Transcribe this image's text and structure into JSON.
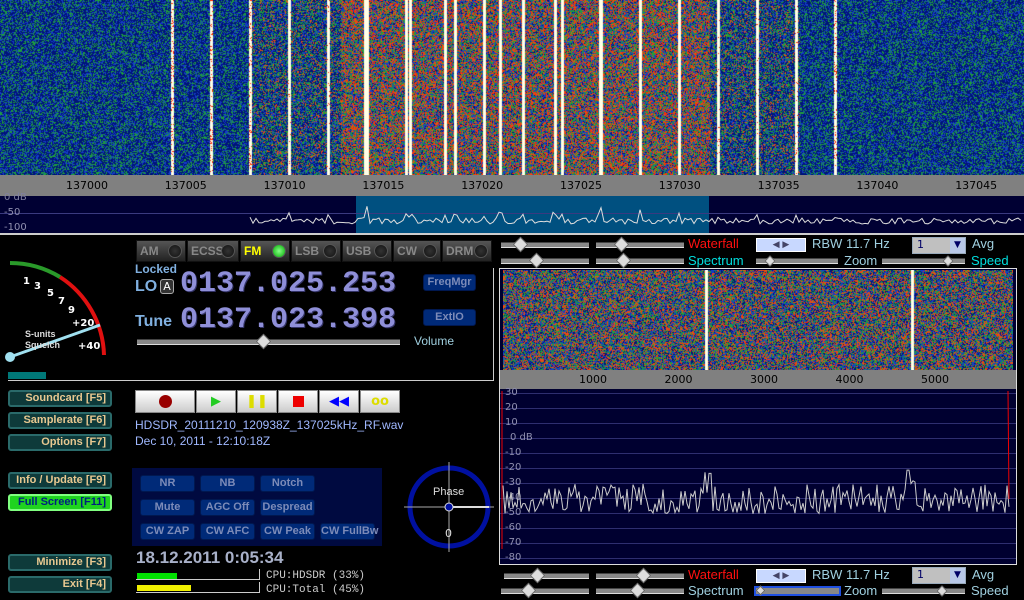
{
  "top_scale": {
    "ticks": [
      "137000",
      "137005",
      "137010",
      "137015",
      "137020",
      "137025",
      "137030",
      "137035",
      "137040",
      "137045"
    ]
  },
  "top_spectrum": {
    "db_labels": [
      "0 dB",
      "-50",
      "-100"
    ]
  },
  "modes": [
    {
      "label": "AM",
      "active": false
    },
    {
      "label": "ECSS",
      "active": false
    },
    {
      "label": "FM",
      "active": true
    },
    {
      "label": "LSB",
      "active": false
    },
    {
      "label": "USB",
      "active": false
    },
    {
      "label": "CW",
      "active": false
    },
    {
      "label": "DRM",
      "active": false
    }
  ],
  "freq": {
    "locked": "Locked",
    "lo_label": "LO",
    "lo_badge": "A",
    "lo_value": "0137.025.253",
    "tune_label": "Tune",
    "tune_value": "0137.023.398",
    "freqmgr": "FreqMgr",
    "extio": "ExtIO",
    "volume": "Volume",
    "volume_level": 0.48
  },
  "smeter": {
    "labels": [
      "1",
      "3",
      "5",
      "7",
      "9",
      "+20",
      "+40"
    ],
    "caption1": "S-units",
    "caption2": "Squelch"
  },
  "left_buttons": {
    "soundcard": "Soundcard  [F5]",
    "samplerate": "Samplerate [F6]",
    "options": "Options    [F7]",
    "info": "Info / Update  [F9]",
    "fullscreen": "Full Screen  [F11]",
    "minimize": "Minimize  [F3]",
    "exit": "Exit       [F4]"
  },
  "recording": {
    "filename": "HDSDR_20111210_120938Z_137025kHz_RF.wav",
    "date": "Dec 10, 2011 - 12:10:18Z"
  },
  "dsp": [
    [
      "NR",
      "NB",
      "Notch"
    ],
    [
      "Mute",
      "AGC Off",
      "Despread"
    ],
    [
      "CW ZAP",
      "CW AFC",
      "CW Peak",
      "CW FullBw"
    ]
  ],
  "phase": {
    "label": "Phase",
    "value": "0"
  },
  "clock": "18.12.2011 0:05:34",
  "cpu": {
    "hdsdr": "CPU:HDSDR (33%)",
    "total": "CPU:Total (45%)",
    "hdsdr_pct": 33,
    "total_pct": 45
  },
  "af": {
    "waterfall": "Waterfall",
    "spectrum": "Spectrum",
    "rbw": "RBW 11.7 Hz",
    "avg_value": "1",
    "avg": "Avg",
    "zoom": "Zoom",
    "speed": "Speed",
    "scale_ticks": [
      "1000",
      "2000",
      "3000",
      "4000",
      "5000"
    ],
    "db_labels": [
      "30",
      "20",
      "10",
      "0 dB",
      "-10",
      "-20",
      "-30",
      "-40",
      "-50",
      "-60",
      "-70",
      "-80"
    ]
  },
  "colors": {
    "waterfall_red": "#ff1010",
    "cyan": "#00e0e0",
    "panel": "#000030",
    "highlight": "#005080"
  }
}
